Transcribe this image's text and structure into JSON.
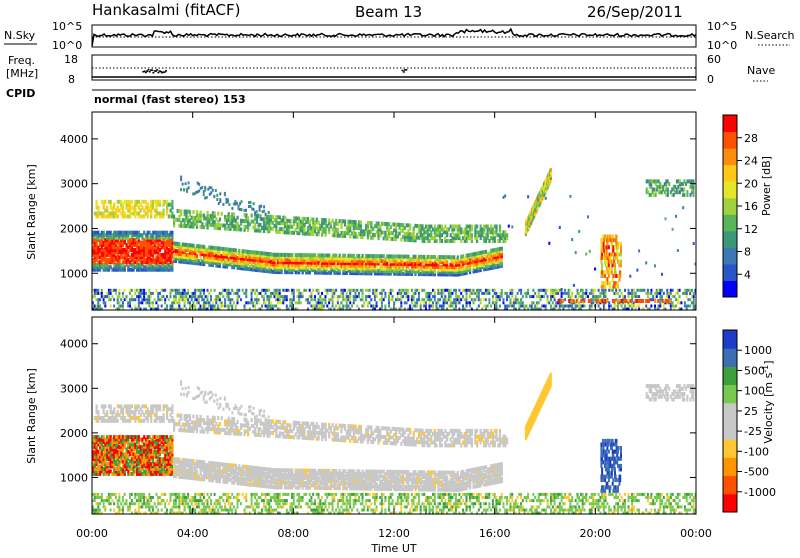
{
  "header": {
    "station": "Hankasalmi (fitACF)",
    "beam": "Beam 13",
    "date": "26/Sep/2011"
  },
  "nsky_panel": {
    "left_label": "N.Sky",
    "left_ticks": [
      "10^5",
      "10^0"
    ],
    "right_ticks": [
      "10^5",
      "10^0"
    ],
    "right_label": "N.Search"
  },
  "freq_panel": {
    "left_label_1": "Freq.",
    "left_label_2": "[MHz]",
    "left_ticks": [
      "18",
      "8"
    ],
    "right_ticks": [
      "60",
      "0"
    ],
    "right_label": "Nave"
  },
  "cpid": {
    "label": "CPID",
    "value": "normal (fast stereo) 153"
  },
  "time_axis": {
    "label": "Time UT",
    "ticks": [
      "00:00",
      "04:00",
      "08:00",
      "12:00",
      "16:00",
      "20:00",
      "00:00"
    ]
  },
  "chart_data": [
    {
      "type": "heatmap",
      "panel": "power",
      "ylabel": "Slant Range [km]",
      "x_range_hours": [
        0,
        24
      ],
      "ylim": [
        180,
        4600
      ],
      "yticks": [
        1000,
        2000,
        3000,
        4000
      ],
      "colorbar": {
        "label": "Power [dB]",
        "ticks": [
          "28",
          "24",
          "20",
          "16",
          "12",
          "8",
          "4"
        ],
        "colors": [
          "#0000ff",
          "#2a55c8",
          "#3c78b4",
          "#3c9678",
          "#5ab45a",
          "#a0d23c",
          "#e6e628",
          "#ffc814",
          "#ff8c0a",
          "#ff5000",
          "#ff0000"
        ]
      },
      "features": [
        {
          "name": "main-echo-band",
          "t_start_h": 0,
          "t_end_h": 16.3,
          "range_start_km": 1500,
          "range_end_km": 1300,
          "intensity_db": 28
        },
        {
          "name": "upper-echo-band",
          "t_start_h": 0,
          "t_end_h": 16.5,
          "range_start_km": 2450,
          "range_end_km": 1900,
          "intensity_db": 12
        },
        {
          "name": "late-streak",
          "t_start_h": 17.2,
          "t_end_h": 18.2,
          "range_start_km": 2000,
          "range_end_km": 3200,
          "intensity_db": 18
        }
      ]
    },
    {
      "type": "heatmap",
      "panel": "velocity",
      "ylabel": "Slant Range [km]",
      "x_range_hours": [
        0,
        24
      ],
      "ylim": [
        180,
        4600
      ],
      "yticks": [
        1000,
        2000,
        3000,
        4000
      ],
      "colorbar": {
        "label": "Velocity [m s^-1]",
        "ticks": [
          "1000",
          "500",
          "100",
          "25",
          "-25",
          "-100",
          "-500",
          "-1000"
        ],
        "colors": [
          "#ff0000",
          "#ff5000",
          "#ff9600",
          "#ffc832",
          "#c8c8c8",
          "#c8c8c8",
          "#78c850",
          "#3ca03c",
          "#3c6eb4",
          "#1e3cc8"
        ]
      },
      "features": [
        {
          "name": "main-echo-band",
          "t_start_h": 0,
          "t_end_h": 16.3,
          "range_start_km": 1500,
          "range_end_km": 1000,
          "velocity_ms": 0
        },
        {
          "name": "early-red-patch",
          "t_start_h": 0,
          "t_end_h": 3.2,
          "range_start_km": 1500,
          "range_end_km": 1500,
          "velocity_ms": -500
        }
      ]
    }
  ]
}
